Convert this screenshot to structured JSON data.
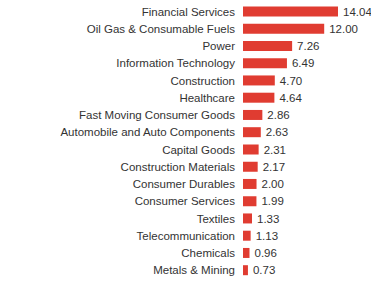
{
  "chart_data": {
    "type": "bar",
    "orientation": "horizontal",
    "categories": [
      "Financial Services",
      "Oil Gas & Consumable Fuels",
      "Power",
      "Information Technology",
      "Construction",
      "Healthcare",
      "Fast Moving Consumer Goods",
      "Automobile and Auto Components",
      "Capital Goods",
      "Construction Materials",
      "Consumer Durables",
      "Consumer Services",
      "Textiles",
      "Telecommunication",
      "Chemicals",
      "Metals & Mining"
    ],
    "values": [
      14.04,
      12.0,
      7.26,
      6.49,
      4.7,
      4.64,
      2.86,
      2.63,
      2.31,
      2.17,
      2.0,
      1.99,
      1.33,
      1.13,
      0.96,
      0.73
    ],
    "value_labels": [
      "14.04",
      "12.00",
      "7.26",
      "6.49",
      "4.70",
      "4.64",
      "2.86",
      "2.63",
      "2.31",
      "2.17",
      "2.00",
      "1.99",
      "1.33",
      "1.13",
      "0.96",
      "0.73"
    ],
    "color": "#e03c31",
    "data_labels": true,
    "tick_labels": "y",
    "grid": false
  }
}
